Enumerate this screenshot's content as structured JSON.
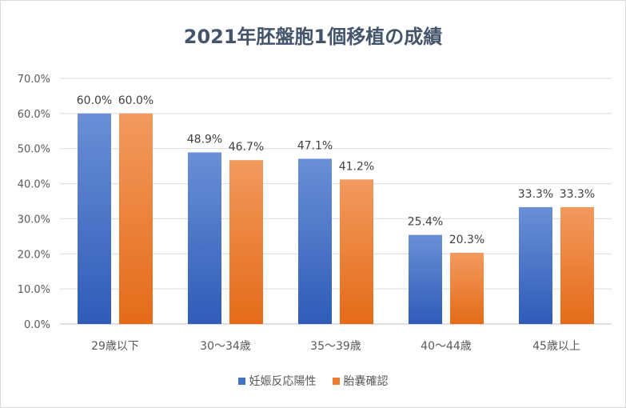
{
  "chart_data": {
    "type": "bar",
    "title": "2021年胚盤胞1個移植の成績",
    "categories": [
      "29歳以下",
      "30〜34歳",
      "35〜39歳",
      "40〜44歳",
      "45歳以上"
    ],
    "series": [
      {
        "name": "妊娠反応陽性",
        "values": [
          60.0,
          48.9,
          47.1,
          25.4,
          33.3
        ],
        "color": "#4472c4"
      },
      {
        "name": "胎嚢確認",
        "values": [
          60.0,
          46.7,
          41.2,
          20.3,
          33.3
        ],
        "color": "#ed7d31"
      }
    ],
    "yticks": [
      "0.0%",
      "10.0%",
      "20.0%",
      "30.0%",
      "40.0%",
      "50.0%",
      "60.0%",
      "70.0%"
    ],
    "data_labels": [
      [
        "60.0%",
        "48.9%",
        "47.1%",
        "25.4%",
        "33.3%"
      ],
      [
        "60.0%",
        "46.7%",
        "41.2%",
        "20.3%",
        "33.3%"
      ]
    ],
    "ylim": [
      0,
      70
    ],
    "grid": true,
    "legend": "bottom",
    "xlabel": "",
    "ylabel": ""
  }
}
